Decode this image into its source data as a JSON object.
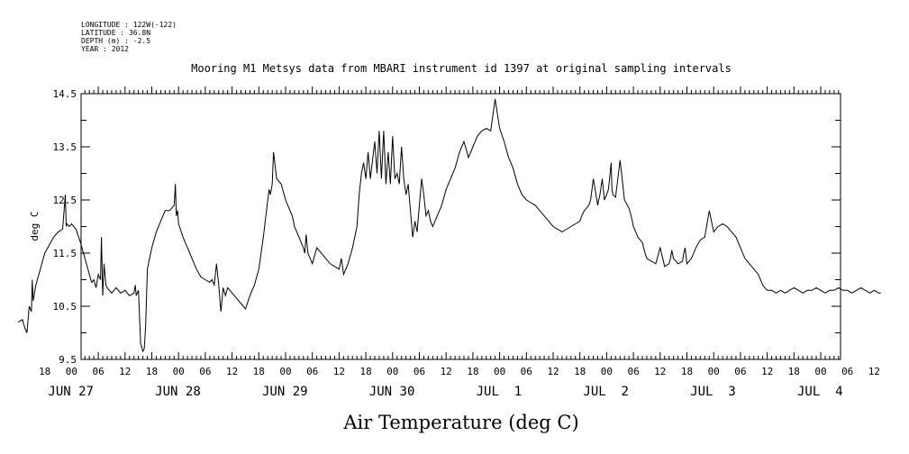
{
  "metadata": {
    "longitude": "LONGITUDE : 122W(-122)",
    "latitude": "LATITUDE : 36.8N",
    "depth": "DEPTH (m) : -2.5",
    "year": "YEAR : 2012"
  },
  "chart_data": {
    "type": "line",
    "title": "Mooring M1 Metsys data from MBARI instrument id 1397 at original sampling intervals",
    "xlabel": "Air Temperature (deg C)",
    "ylabel": "deg C",
    "ylim": [
      9.5,
      14.5
    ],
    "yticks": [
      9.5,
      10.5,
      11.5,
      12.5,
      13.5,
      14.5
    ],
    "x_unit": "hours since JUN 26 12:00",
    "xlim": [
      0,
      194
    ],
    "hour_ticks": [
      {
        "x": 6,
        "label": "18"
      },
      {
        "x": 12,
        "label": "00"
      },
      {
        "x": 18,
        "label": "06"
      },
      {
        "x": 24,
        "label": "12"
      },
      {
        "x": 30,
        "label": "18"
      },
      {
        "x": 36,
        "label": "00"
      },
      {
        "x": 42,
        "label": "06"
      },
      {
        "x": 48,
        "label": "12"
      },
      {
        "x": 54,
        "label": "18"
      },
      {
        "x": 60,
        "label": "00"
      },
      {
        "x": 66,
        "label": "06"
      },
      {
        "x": 72,
        "label": "12"
      },
      {
        "x": 78,
        "label": "18"
      },
      {
        "x": 84,
        "label": "00"
      },
      {
        "x": 90,
        "label": "06"
      },
      {
        "x": 96,
        "label": "12"
      },
      {
        "x": 102,
        "label": "18"
      },
      {
        "x": 108,
        "label": "00"
      },
      {
        "x": 114,
        "label": "06"
      },
      {
        "x": 120,
        "label": "12"
      },
      {
        "x": 126,
        "label": "18"
      },
      {
        "x": 132,
        "label": "00"
      },
      {
        "x": 138,
        "label": "06"
      },
      {
        "x": 144,
        "label": "12"
      },
      {
        "x": 150,
        "label": "18"
      },
      {
        "x": 156,
        "label": "00"
      },
      {
        "x": 162,
        "label": "06"
      },
      {
        "x": 168,
        "label": "12"
      },
      {
        "x": 174,
        "label": "18"
      },
      {
        "x": 180,
        "label": "00"
      },
      {
        "x": 186,
        "label": "06"
      },
      {
        "x": 192,
        "label": "12"
      }
    ],
    "date_labels": [
      {
        "x": 12,
        "label": "JUN 27"
      },
      {
        "x": 36,
        "label": "JUN 28"
      },
      {
        "x": 60,
        "label": "JUN 29"
      },
      {
        "x": 84,
        "label": "JUN 30"
      },
      {
        "x": 108,
        "label": "JUL  1"
      },
      {
        "x": 132,
        "label": "JUL  2"
      },
      {
        "x": 156,
        "label": "JUL  3"
      },
      {
        "x": 180,
        "label": "JUL  4"
      }
    ],
    "series": [
      {
        "color": "#000000",
        "x": [
          0,
          1,
          1.5,
          2,
          2.5,
          3,
          3.2,
          3.4,
          4,
          5,
          6,
          7,
          8,
          9,
          10,
          10.6,
          10.8,
          11,
          11.5,
          12,
          13,
          14,
          15,
          16,
          16.5,
          17,
          17.5,
          18,
          18.5,
          18.7,
          19,
          19.3,
          19.5,
          19.7,
          20,
          21,
          22,
          23,
          24,
          25,
          26,
          26.3,
          26.5,
          27,
          27.5,
          28,
          28.3,
          28.6,
          29,
          30,
          31,
          32,
          33,
          34,
          35,
          35.3,
          35.5,
          35.8,
          36,
          37,
          38,
          39,
          40,
          41,
          42,
          43,
          43.5,
          44,
          44.5,
          45,
          45.5,
          46,
          46.5,
          47,
          48,
          49,
          50,
          51,
          52,
          53,
          54,
          55,
          56,
          56.3,
          56.6,
          57,
          57.3,
          58,
          59,
          60,
          61,
          61.5,
          62,
          63,
          64,
          64.3,
          64.6,
          65,
          66,
          67,
          68,
          69,
          70,
          71,
          72,
          72.5,
          73,
          74,
          75,
          76,
          76.5,
          77,
          77.5,
          78,
          78.5,
          79,
          80,
          80.5,
          81,
          81.5,
          82,
          82.5,
          83,
          83.5,
          84,
          84.5,
          85,
          85.5,
          86,
          86.5,
          87,
          87.5,
          88,
          88.5,
          89,
          89.5,
          90,
          90.5,
          91,
          91.5,
          92,
          92.5,
          93,
          94,
          95,
          96,
          97,
          98,
          99,
          100,
          101,
          102,
          103,
          104,
          105,
          106,
          107,
          108,
          109,
          110,
          111,
          112,
          113,
          114,
          115,
          116,
          117,
          118,
          119,
          120,
          121,
          122,
          123,
          124,
          125,
          126,
          126.2,
          126.4,
          127,
          128,
          128.2,
          128.4,
          129,
          130,
          130.2,
          130.4,
          131,
          131.5,
          132,
          132.2,
          132.4,
          133,
          133.2,
          133.4,
          134,
          135,
          136,
          137,
          137.5,
          138,
          138.5,
          139,
          140,
          140.3,
          140.6,
          141,
          142,
          143,
          144,
          145,
          146,
          146.3,
          146.6,
          147,
          148,
          149,
          149.3,
          149.6,
          150,
          151,
          152,
          153,
          154,
          155,
          156,
          157,
          158,
          159,
          160,
          161,
          162,
          163,
          164,
          165,
          166,
          166.5,
          167,
          167.5,
          168,
          169,
          170,
          171,
          172,
          173,
          174,
          175,
          176,
          177,
          178,
          179,
          180,
          181,
          182,
          183,
          184,
          185,
          186,
          187,
          188,
          189,
          190,
          191,
          192,
          193,
          193.5
        ],
        "values": [
          10.2,
          10.25,
          10.1,
          10.0,
          10.5,
          10.4,
          11.0,
          10.6,
          10.9,
          11.2,
          11.5,
          11.65,
          11.8,
          11.9,
          11.95,
          12.6,
          12.0,
          12.05,
          12.0,
          12.05,
          11.95,
          11.7,
          11.4,
          11.1,
          10.95,
          11.0,
          10.85,
          11.1,
          11.0,
          11.8,
          10.7,
          11.3,
          11.1,
          10.9,
          10.85,
          10.75,
          10.85,
          10.75,
          10.8,
          10.7,
          10.75,
          10.9,
          10.7,
          10.8,
          9.8,
          9.65,
          9.7,
          10.1,
          11.2,
          11.6,
          11.9,
          12.1,
          12.3,
          12.3,
          12.4,
          12.8,
          12.2,
          12.3,
          12.05,
          11.8,
          11.6,
          11.4,
          11.2,
          11.05,
          11.0,
          10.95,
          11.0,
          10.9,
          11.3,
          10.9,
          10.4,
          10.85,
          10.7,
          10.85,
          10.75,
          10.65,
          10.55,
          10.45,
          10.7,
          10.9,
          11.2,
          11.8,
          12.5,
          12.7,
          12.6,
          12.8,
          13.4,
          12.9,
          12.8,
          12.5,
          12.3,
          12.2,
          12.0,
          11.8,
          11.6,
          11.5,
          11.85,
          11.5,
          11.3,
          11.6,
          11.5,
          11.4,
          11.3,
          11.25,
          11.2,
          11.4,
          11.1,
          11.3,
          11.6,
          12.0,
          12.6,
          13.0,
          13.2,
          12.9,
          13.4,
          12.9,
          13.6,
          13.0,
          13.8,
          12.9,
          13.8,
          12.8,
          13.4,
          12.8,
          13.7,
          12.9,
          13.0,
          12.8,
          13.5,
          12.9,
          12.6,
          12.8,
          12.3,
          11.8,
          12.1,
          11.9,
          12.4,
          12.9,
          12.6,
          12.2,
          12.3,
          12.1,
          12.0,
          12.2,
          12.4,
          12.7,
          12.9,
          13.1,
          13.4,
          13.6,
          13.3,
          13.5,
          13.7,
          13.8,
          13.85,
          13.8,
          14.4,
          13.85,
          13.6,
          13.3,
          13.1,
          12.8,
          12.6,
          12.5,
          12.45,
          12.4,
          12.3,
          12.2,
          12.1,
          12.0,
          11.95,
          11.9,
          11.95,
          12.0,
          12.05,
          12.1,
          12.15,
          12.2,
          12.3,
          12.4,
          12.45,
          12.5,
          12.9,
          12.4,
          12.5,
          12.55,
          12.9,
          12.5,
          12.6,
          12.65,
          12.7,
          13.2,
          12.7,
          12.6,
          12.55,
          13.25,
          12.5,
          12.35,
          12.2,
          12.0,
          11.9,
          11.8,
          11.7,
          11.6,
          11.5,
          11.4,
          11.35,
          11.3,
          11.6,
          11.25,
          11.3,
          11.4,
          11.55,
          11.4,
          11.3,
          11.35,
          11.5,
          11.6,
          11.3,
          11.4,
          11.6,
          11.75,
          11.8,
          12.3,
          11.9,
          12.0,
          12.05,
          12.0,
          11.9,
          11.8,
          11.6,
          11.4,
          11.3,
          11.2,
          11.1,
          11.0,
          10.9,
          10.85,
          10.8,
          10.8,
          10.75,
          10.8,
          10.75,
          10.8,
          10.85,
          10.8,
          10.75,
          10.8,
          10.8,
          10.85,
          10.8,
          10.75,
          10.8,
          10.8,
          10.85,
          10.8,
          10.8,
          10.75,
          10.8,
          10.85,
          10.8,
          10.75,
          10.8,
          10.75,
          10.75
        ]
      }
    ]
  }
}
